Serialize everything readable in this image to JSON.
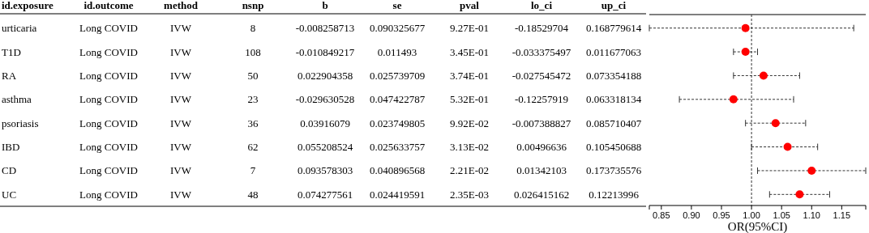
{
  "chart_data": [
    {
      "type": "other",
      "categories": [
        "id.exposure",
        "id.outcome",
        "method",
        "nsnp",
        "b",
        "se",
        "pval",
        "lo_ci",
        "up_ci"
      ],
      "cell_labels": [
        [
          "urticaria",
          "Long COVID",
          "IVW",
          "8",
          "-0.008258713",
          "0.090325677",
          "9.27E-01",
          "-0.18529704",
          "0.168779614"
        ],
        [
          "T1D",
          "Long COVID",
          "IVW",
          "108",
          "-0.010849217",
          "0.011493",
          "3.45E-01",
          "-0.033375497",
          "0.011677063"
        ],
        [
          "RA",
          "Long COVID",
          "IVW",
          "50",
          "0.022904358",
          "0.025739709",
          "3.74E-01",
          "-0.027545472",
          "0.073354188"
        ],
        [
          "asthma",
          "Long COVID",
          "IVW",
          "23",
          "-0.029630528",
          "0.047422787",
          "5.32E-01",
          "-0.12257919",
          "0.063318134"
        ],
        [
          "psoriasis",
          "Long COVID",
          "IVW",
          "36",
          "0.03916079",
          "0.023749805",
          "9.92E-02",
          "-0.007388827",
          "0.085710407"
        ],
        [
          "IBD",
          "Long COVID",
          "IVW",
          "62",
          "0.055208524",
          "0.025633757",
          "3.13E-02",
          "0.00496636",
          "0.105450688"
        ],
        [
          "CD",
          "Long COVID",
          "IVW",
          "7",
          "0.093578303",
          "0.040896568",
          "2.21E-02",
          "0.01342103",
          "0.173735576"
        ],
        [
          "UC",
          "Long COVID",
          "IVW",
          "48",
          "0.074277561",
          "0.024419591",
          "2.35E-03",
          "0.026415162",
          "0.12213996"
        ]
      ]
    },
    {
      "type": "scatter",
      "orientation": "horizontal",
      "xlabel": "OR(95%CI)",
      "categories": [
        null,
        null,
        null,
        null,
        null,
        null,
        null,
        null
      ],
      "values": [
        0.99,
        0.99,
        1.02,
        0.97,
        1.04,
        1.06,
        1.1,
        1.08
      ],
      "errors": [
        [
          0.83,
          1.17
        ],
        [
          0.97,
          1.01
        ],
        [
          0.97,
          1.08
        ],
        [
          0.88,
          1.07
        ],
        [
          0.99,
          1.09
        ],
        [
          1.0,
          1.11
        ],
        [
          1.01,
          1.19
        ],
        [
          1.03,
          1.13
        ]
      ],
      "color": "#ff0000",
      "marker": "circle",
      "line_style": "dashed",
      "xlim": [
        0.83,
        1.19
      ],
      "xticks": [
        {
          "value": 0.83,
          "label": null
        },
        0.85,
        {
          "value": 0.9,
          "label": "0.90"
        },
        0.95,
        {
          "value": 1,
          "label": "1.00"
        },
        1.05,
        {
          "value": 1.1,
          "label": "1.10"
        },
        1.15,
        {
          "value": 1.19,
          "label": null
        }
      ],
      "ref_lines": [
        {
          "axis": "x",
          "value": 1,
          "line_style": "dashed"
        }
      ],
      "tick_labels": "x"
    }
  ]
}
